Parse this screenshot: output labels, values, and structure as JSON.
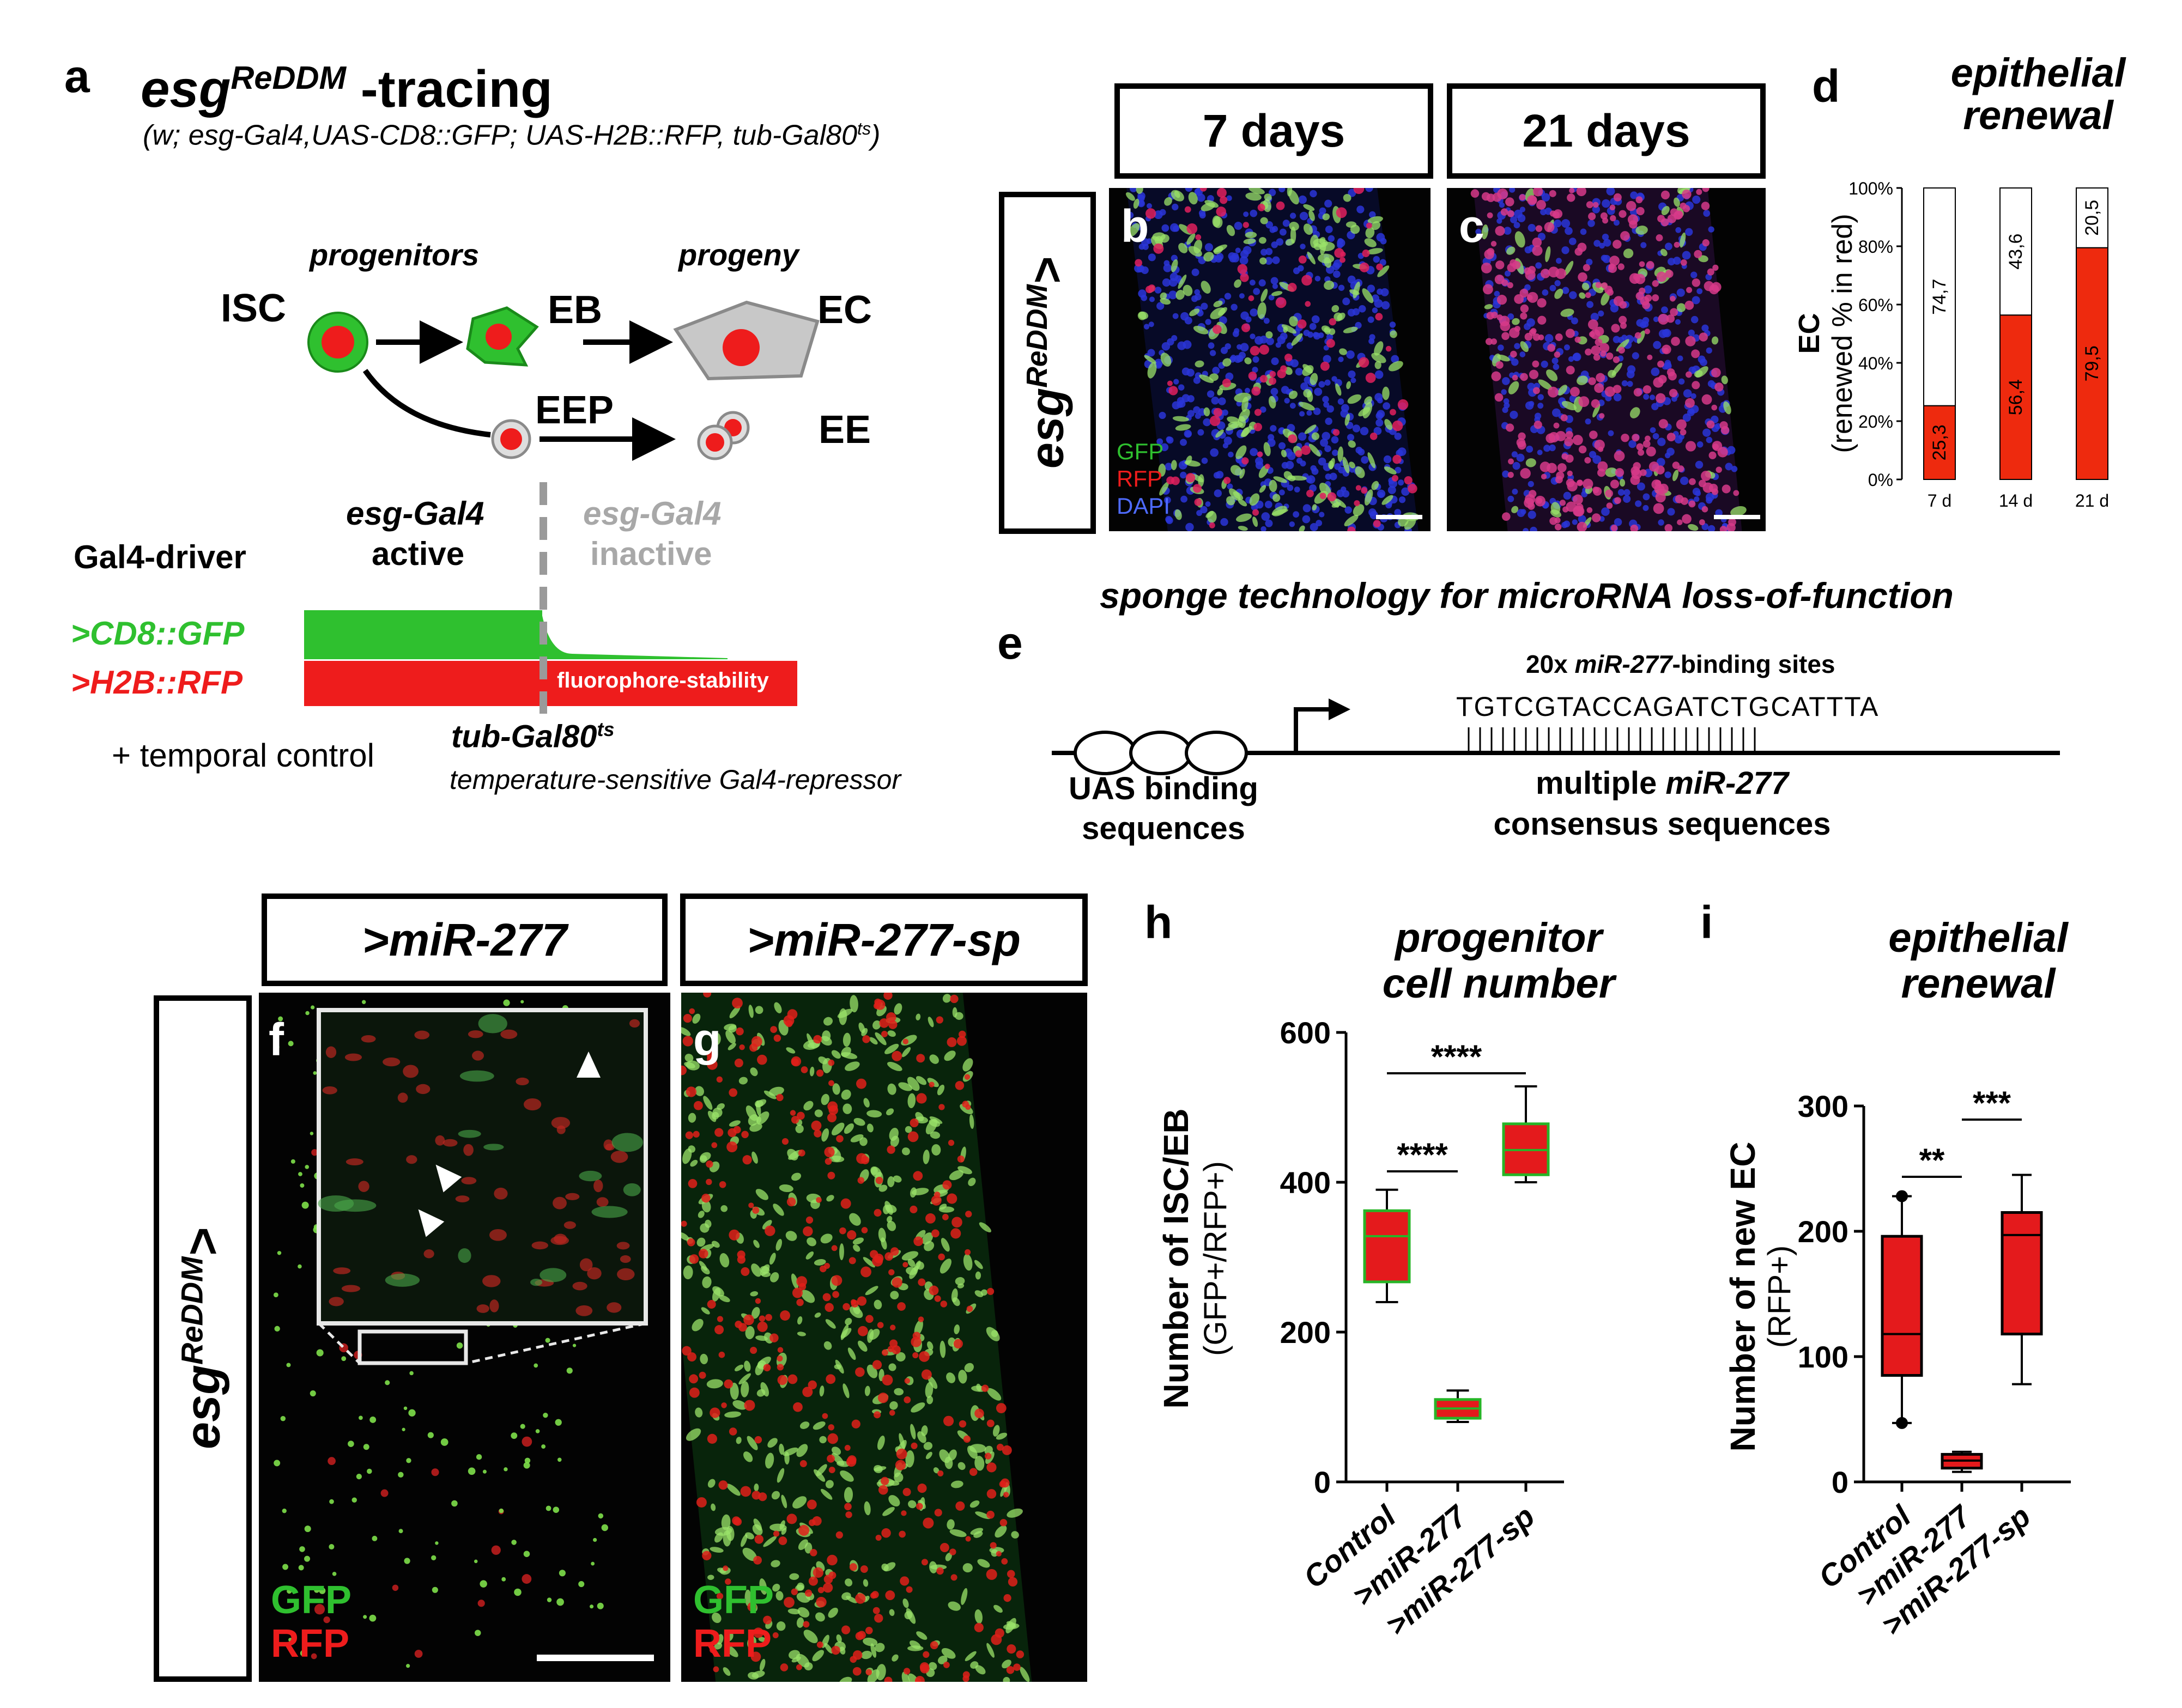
{
  "panels": {
    "a": "a",
    "b": "b",
    "c": "c",
    "d": "d",
    "e": "e",
    "f": "f",
    "g": "g",
    "h": "h",
    "i": "i"
  },
  "panel_a": {
    "title_base": "esg",
    "title_sup": "ReDDM",
    "title_suffix": " -tracing",
    "genotype_pre": "(w; esg-Gal4,UAS-CD8::GFP; UAS-H2B::RFP, tub-Gal80",
    "genotype_sup": "ts",
    "genotype_post": ")",
    "progenitors": "progenitors",
    "progeny": "progeny",
    "isc": "ISC",
    "eb": "EB",
    "ec": "EC",
    "eep": "EEP",
    "ee": "EE",
    "gal4_driver": "Gal4-driver",
    "active_l1": "esg-Gal4",
    "active_l2": "active",
    "inactive_l1": "esg-Gal4",
    "inactive_l2": "inactive",
    "cd8gfp": ">CD8::GFP",
    "h2brfp": ">H2B::RFP",
    "fluoro": "fluorophore-stability",
    "temporal": "+ temporal control",
    "tubgal80_base": "tub-Gal80",
    "tubgal80_sup": "ts",
    "tubgal80_desc": "temperature-sensitive Gal4-repressor",
    "colors": {
      "gfp": "#2fc02f",
      "rfp": "#ee1c1c",
      "cell_gray": "#c8c8c8",
      "inactive_text": "#a8a8a8"
    }
  },
  "panel_bc": {
    "header_7": "7 days",
    "header_21": "21 days",
    "side_base": "esg",
    "side_sup": "ReDDM",
    "side_suffix": ">",
    "legend_gfp": "GFP",
    "legend_rfp": "RFP",
    "legend_dapi": "DAPI"
  },
  "panel_d": {
    "title_l1": "epithelial",
    "title_l2": "renewal"
  },
  "chart_data": [
    {
      "id": "d",
      "type": "bar",
      "stacked": true,
      "categories": [
        "7 d",
        "14 d",
        "21 d"
      ],
      "series": [
        {
          "name": "",
          "values": [
            25.3,
            56.4,
            79.5
          ],
          "labels": [
            "25,3",
            "56,4",
            "79,5"
          ],
          "color": "#ee2a0e"
        },
        {
          "name": "",
          "values": [
            74.7,
            43.6,
            20.5
          ],
          "labels": [
            "74,7",
            "43,6",
            "20,5"
          ],
          "color": "#ffffff"
        }
      ],
      "ylabel_l1": "EC",
      "ylabel_l2": "(renewed % in red)",
      "yticks": [
        "0%",
        "20%",
        "40%",
        "60%",
        "80%",
        "100%"
      ],
      "ylim": [
        0,
        100
      ]
    },
    {
      "id": "h",
      "type": "box",
      "title_l1": "progenitor",
      "title_l2": "cell number",
      "categories": [
        "Control",
        ">miR-277",
        ">miR-277-sp"
      ],
      "boxes": [
        {
          "min": 240,
          "q1": 267,
          "median": 328,
          "q3": 362,
          "max": 390,
          "outliers": []
        },
        {
          "min": 80,
          "q1": 85,
          "median": 98,
          "q3": 110,
          "max": 122,
          "outliers": []
        },
        {
          "min": 400,
          "q1": 410,
          "median": 443,
          "q3": 478,
          "max": 528,
          "outliers": []
        }
      ],
      "ylabel_l1": "Number of ISC/EB",
      "ylabel_l2": "(GFP+/RFP+)",
      "ylim": [
        0,
        600
      ],
      "yticks": [
        "0",
        "200",
        "400",
        "600"
      ],
      "significance": [
        {
          "from": 0,
          "to": 1,
          "label": "****"
        },
        {
          "from": 0,
          "to": 2,
          "label": "****"
        }
      ],
      "box_fill": "#e41a1c",
      "box_edge": "#27b527"
    },
    {
      "id": "i",
      "type": "box",
      "title_l1": "epithelial",
      "title_l2": "renewal",
      "categories": [
        "Control",
        ">miR-277",
        ">miR-277-sp"
      ],
      "boxes": [
        {
          "min": 47,
          "q1": 85,
          "median": 118,
          "q3": 196,
          "max": 228,
          "outliers": [
            228,
            47
          ]
        },
        {
          "min": 8,
          "q1": 11,
          "median": 17,
          "q3": 22,
          "max": 24,
          "outliers": []
        },
        {
          "min": 78,
          "q1": 118,
          "median": 197,
          "q3": 215,
          "max": 245,
          "outliers": []
        }
      ],
      "ylabel_l1": "Number of new EC",
      "ylabel_l2": "(RFP+)",
      "ylim": [
        0,
        300
      ],
      "yticks": [
        "0",
        "100",
        "200",
        "300"
      ],
      "significance": [
        {
          "from": 0,
          "to": 1,
          "label": "**"
        },
        {
          "from": 1,
          "to": 2,
          "label": "***"
        }
      ],
      "box_fill": "#e41a1c",
      "box_edge": "#000000"
    }
  ],
  "panel_e": {
    "title": "sponge technology for microRNA loss-of-function",
    "binding_pre": "20x ",
    "binding_mir": "miR-277",
    "binding_post": "-binding sites",
    "sequence": "TGTCGTACCAGATCTGCATTTA",
    "uas_l1": "UAS binding",
    "uas_l2": "sequences",
    "multi_pre": "multiple ",
    "multi_mir": "miR-277",
    "consensus": "consensus sequences"
  },
  "panel_fg": {
    "header_f": ">miR-277",
    "header_g": ">miR-277-sp",
    "side_base": "esg",
    "side_sup": "ReDDM",
    "side_suffix": ">",
    "legend_gfp": "GFP",
    "legend_rfp": "RFP"
  }
}
